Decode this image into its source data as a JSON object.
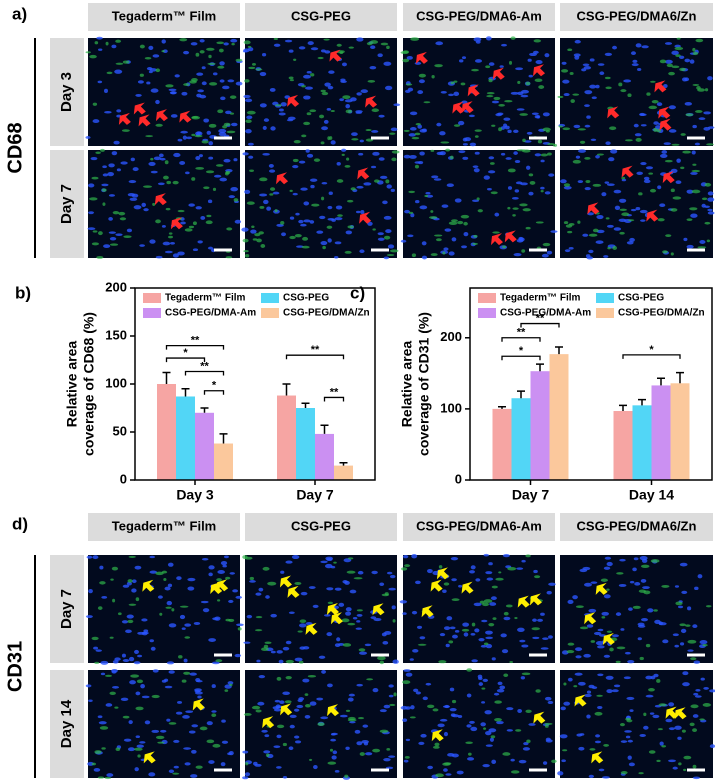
{
  "panels": {
    "a": {
      "label": "a)",
      "marker": "CD68",
      "columns": [
        "Tegaderm™ Film",
        "CSG-PEG",
        "CSG-PEG/DMA6-Am",
        "CSG-PEG/DMA6/Zn"
      ],
      "rows": [
        "Day 3",
        "Day 7"
      ]
    },
    "d": {
      "label": "d)",
      "marker": "CD31",
      "columns": [
        "Tegaderm™ Film",
        "CSG-PEG",
        "CSG-PEG/DMA6-Am",
        "CSG-PEG/DMA6/Zn"
      ],
      "rows": [
        "Day 7",
        "Day 14"
      ]
    }
  },
  "chart_data": [
    {
      "type": "bar",
      "label": "b)",
      "y_label": [
        "Relative area",
        "coverage of CD68 (%)"
      ],
      "categories": [
        "Day 3",
        "Day 7"
      ],
      "series": [
        {
          "name": "Tegaderm™ Film",
          "color": "#f6a5a3",
          "values": [
            100,
            88
          ],
          "errors": [
            12,
            12
          ]
        },
        {
          "name": "CSG-PEG",
          "color": "#52d6f6",
          "values": [
            87,
            75
          ],
          "errors": [
            8,
            5
          ]
        },
        {
          "name": "CSG-PEG/DMA-Am",
          "color": "#cb90f2",
          "values": [
            70,
            48
          ],
          "errors": [
            5,
            9
          ]
        },
        {
          "name": "CSG-PEG/DMA/Zn",
          "color": "#fbc89c",
          "values": [
            38,
            15
          ],
          "errors": [
            10,
            3
          ]
        }
      ],
      "annotations": [
        "**",
        "*",
        "**",
        "*",
        "**",
        "**"
      ],
      "ylim": [
        0,
        200
      ],
      "yticks": [
        0,
        50,
        100,
        150,
        200
      ],
      "legend": "top"
    },
    {
      "type": "bar",
      "label": "c)",
      "y_label": [
        "Relative area",
        "coverage of CD31 (%)"
      ],
      "categories": [
        "Day 7",
        "Day 14"
      ],
      "series": [
        {
          "name": "Tegaderm™ Film",
          "color": "#f6a5a3",
          "values": [
            100,
            97
          ],
          "errors": [
            3,
            8
          ]
        },
        {
          "name": "CSG-PEG",
          "color": "#52d6f6",
          "values": [
            115,
            105
          ],
          "errors": [
            10,
            8
          ]
        },
        {
          "name": "CSG-PEG/DMA-Am",
          "color": "#cb90f2",
          "values": [
            153,
            133
          ],
          "errors": [
            10,
            10
          ]
        },
        {
          "name": "CSG-PEG/DMA/Zn",
          "color": "#fbc89c",
          "values": [
            177,
            136
          ],
          "errors": [
            10,
            15
          ]
        }
      ],
      "annotations": [
        "**",
        "**",
        "*",
        "*"
      ],
      "ylim": [
        0,
        270
      ],
      "yticks": [
        0,
        100,
        200
      ],
      "legend": "top"
    }
  ]
}
